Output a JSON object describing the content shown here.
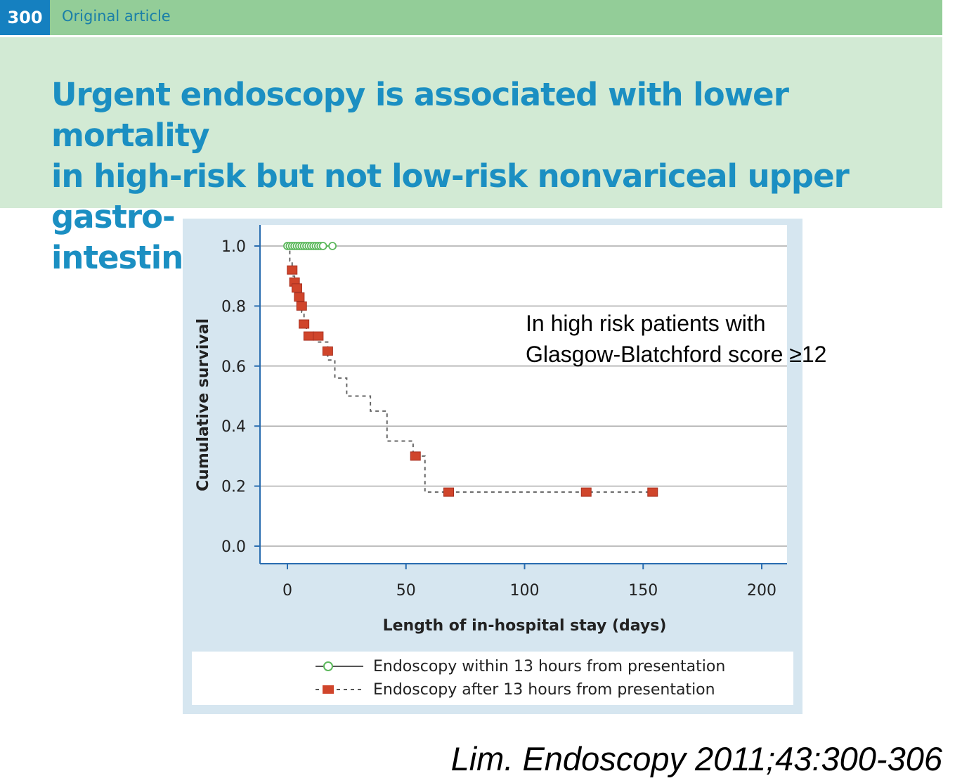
{
  "header": {
    "page_number": "300",
    "section": "Original article"
  },
  "article": {
    "title_lines": [
      "Urgent endoscopy is associated with lower mortality",
      "in high-risk but not low-risk nonvariceal upper gastro-",
      "intestinal bleeding"
    ]
  },
  "annotation": {
    "lines": [
      "In high risk patients with",
      "Glasgow-Blatchford score ≥12"
    ]
  },
  "citation": "Lim. Endoscopy 2011;43:300-306",
  "legend": {
    "items": [
      "Endoscopy within 13 hours from presentation",
      "Endoscopy after 13 hours from presentation"
    ]
  },
  "colors": {
    "early_series": "#5cb85c",
    "late_series": "#d0452b",
    "gridline": "#aaaaaa",
    "axis": "#2a6db0"
  },
  "chart_data": {
    "type": "line",
    "title": "",
    "xlabel": "Length of in-hospital stay (days)",
    "ylabel": "Cumulative survival",
    "xlim": [
      -12,
      210
    ],
    "ylim": [
      -0.06,
      1.08
    ],
    "x_ticks": [
      0,
      50,
      100,
      150,
      200
    ],
    "y_ticks": [
      0.0,
      0.2,
      0.4,
      0.6,
      0.8,
      1.0
    ],
    "y_tick_labels": [
      "0.0",
      "0.2",
      "0.4",
      "0.6",
      "0.8",
      "1.0"
    ],
    "grid": "horizontal",
    "series": [
      {
        "name": "Endoscopy within 13 hours from presentation",
        "style": "solid",
        "marker": "open-circle",
        "x": [
          0,
          19
        ],
        "y": [
          1.0,
          1.0
        ],
        "censored": [
          [
            0,
            1.0
          ],
          [
            1,
            1.0
          ],
          [
            2,
            1.0
          ],
          [
            3,
            1.0
          ],
          [
            4,
            1.0
          ],
          [
            5,
            1.0
          ],
          [
            6,
            1.0
          ],
          [
            7,
            1.0
          ],
          [
            8,
            1.0
          ],
          [
            9,
            1.0
          ],
          [
            10,
            1.0
          ],
          [
            11,
            1.0
          ],
          [
            12,
            1.0
          ],
          [
            13,
            1.0
          ],
          [
            14,
            1.0
          ],
          [
            15,
            1.0
          ],
          [
            19,
            1.0
          ]
        ]
      },
      {
        "name": "Endoscopy after 13 hours from presentation",
        "style": "dashed-step",
        "marker": "filled-square",
        "x": [
          0,
          1,
          2,
          3,
          4,
          5,
          6,
          7,
          8,
          12,
          17,
          20,
          25,
          35,
          42,
          53,
          58,
          154
        ],
        "y": [
          1.0,
          0.95,
          0.9,
          0.87,
          0.84,
          0.82,
          0.78,
          0.74,
          0.7,
          0.68,
          0.62,
          0.56,
          0.5,
          0.45,
          0.35,
          0.3,
          0.18,
          0.18
        ],
        "censored": [
          [
            2,
            0.92
          ],
          [
            3,
            0.88
          ],
          [
            4,
            0.86
          ],
          [
            5,
            0.83
          ],
          [
            6,
            0.8
          ],
          [
            7,
            0.74
          ],
          [
            9,
            0.7
          ],
          [
            13,
            0.7
          ],
          [
            17,
            0.65
          ],
          [
            54,
            0.3
          ],
          [
            68,
            0.18
          ],
          [
            126,
            0.18
          ],
          [
            154,
            0.18
          ]
        ]
      }
    ]
  }
}
